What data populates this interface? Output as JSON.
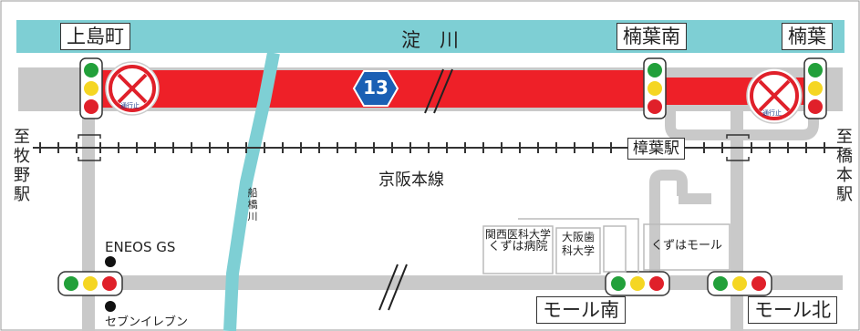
{
  "river": {
    "label": "淀　川"
  },
  "route": {
    "number": "13"
  },
  "intersections": {
    "kamishimacho": "上島町",
    "kusunoha_minami": "楠葉南",
    "kusunoha": "楠葉",
    "mall_minami": "モール南",
    "mall_kita": "モール北"
  },
  "station": {
    "kuzuha": "樟葉駅"
  },
  "railway": {
    "label": "京阪本線"
  },
  "directions": {
    "west": "至牧野駅",
    "east": "至橋本駅"
  },
  "funahashi_river": "船橋川",
  "buildings": {
    "hospital_line1": "関西医科大学",
    "hospital_line2": "くずは病院",
    "dental": "大阪歯科大学",
    "mall": "くずはモール"
  },
  "landmarks": {
    "gas_station": "ENEOS GS",
    "seven_eleven": "セブンイレブン"
  },
  "no_entry_sign_text": "通行止",
  "colors": {
    "river": "#7ecfd4",
    "closed_road": "#ee2028",
    "road": "#c9c9c9",
    "route_badge": "#1a5fb4",
    "signal_green": "#22a03a",
    "signal_yellow": "#f5d623",
    "signal_red": "#e0202a"
  }
}
